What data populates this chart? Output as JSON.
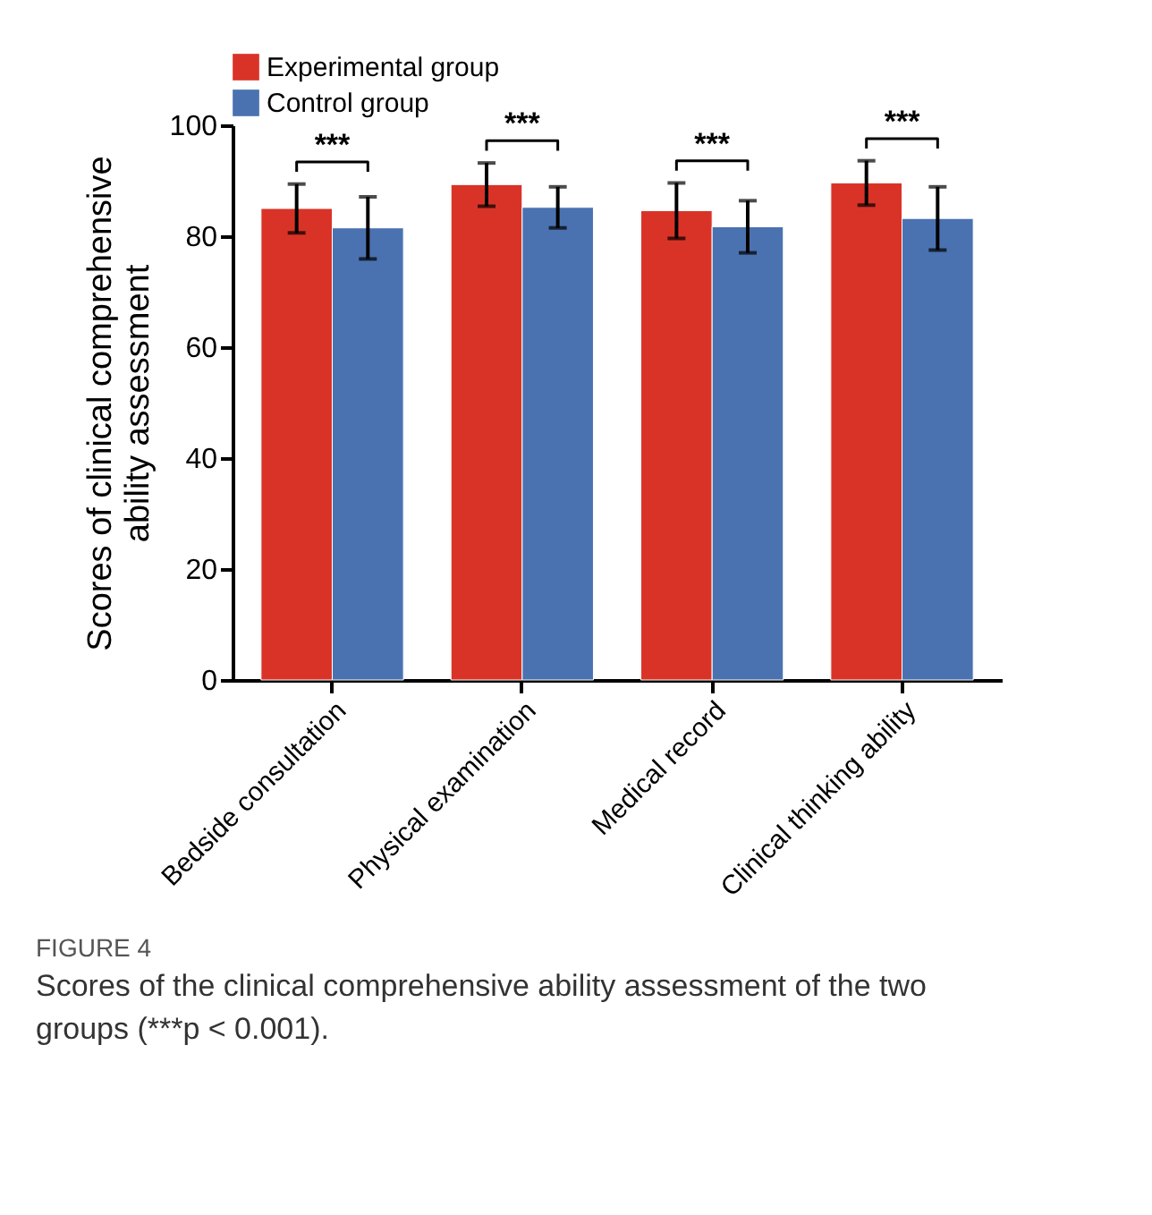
{
  "chart_data": {
    "type": "bar",
    "ylabel": "Scores of clinical comprehensive\nability assessment",
    "categories": [
      "Bedside consultation",
      "Physical examination",
      "Medical record",
      "Clinical thinking ability"
    ],
    "series": [
      {
        "name": "Experimental group",
        "color": "#d93327",
        "values": [
          85.0,
          89.3,
          84.6,
          89.6
        ],
        "errors": [
          4.4,
          3.9,
          5.0,
          4.0
        ]
      },
      {
        "name": "Control group",
        "color": "#4a72b0",
        "values": [
          81.5,
          85.2,
          81.7,
          83.2
        ],
        "errors": [
          5.6,
          3.7,
          4.7,
          5.7
        ]
      }
    ],
    "ylim": [
      0,
      100
    ],
    "yticks": [
      0,
      20,
      40,
      60,
      80,
      100
    ],
    "grid": false,
    "legend": "top",
    "annotations": [
      "***",
      "***",
      "***",
      "***",
      "FIGURE 4",
      "Scores of the clinical comprehensive ability assessment of the two groups (***p < 0.001)."
    ]
  }
}
